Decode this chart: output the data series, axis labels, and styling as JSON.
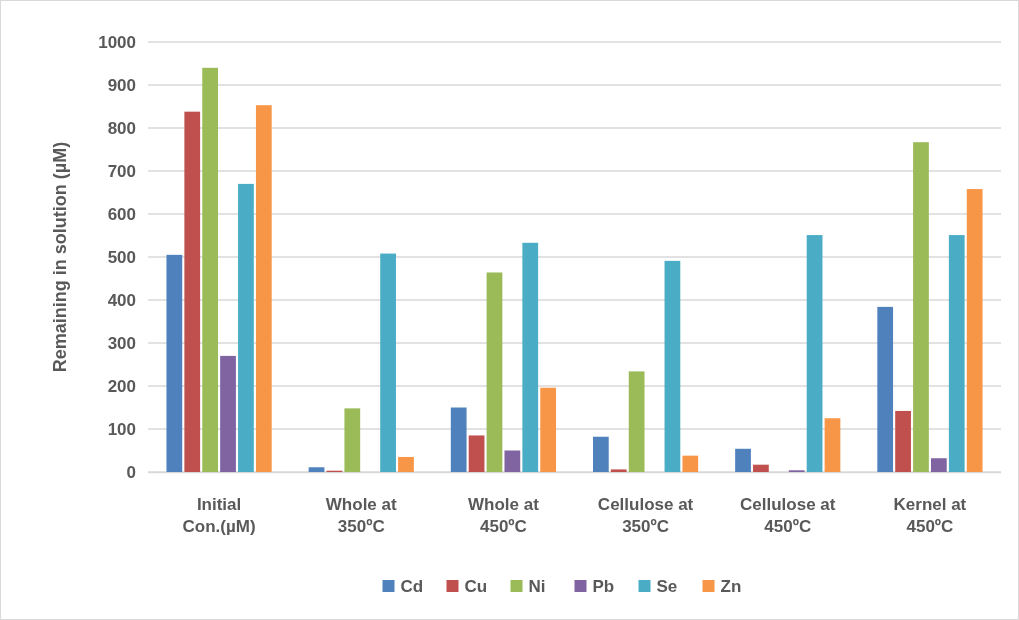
{
  "chart_data": {
    "type": "bar",
    "ylabel": "Remaining in solution (µM)",
    "categories": [
      "Initial Con.(µM)",
      "Whole at 350ºC",
      "Whole at 450ºC",
      "Cellulose at 350ºC",
      "Cellulose at 450ºC",
      "Kernel at 450ºC"
    ],
    "series": [
      {
        "name": "Cd",
        "color": "#4f81bd",
        "values": [
          505,
          11,
          150,
          82,
          54,
          384
        ]
      },
      {
        "name": "Cu",
        "color": "#c0504d",
        "values": [
          838,
          3,
          85,
          6,
          17,
          142
        ]
      },
      {
        "name": "Ni",
        "color": "#9bbb59",
        "values": [
          940,
          148,
          464,
          234,
          0,
          767
        ]
      },
      {
        "name": "Pb",
        "color": "#8064a2",
        "values": [
          270,
          null,
          50,
          0,
          4,
          32
        ]
      },
      {
        "name": "Se",
        "color": "#4bacc6",
        "values": [
          670,
          508,
          533,
          491,
          551,
          551
        ]
      },
      {
        "name": "Zn",
        "color": "#f79646",
        "values": [
          853,
          35,
          196,
          38,
          125,
          658
        ]
      }
    ],
    "ylim": [
      0,
      1000
    ],
    "yticks": [
      0,
      100,
      200,
      300,
      400,
      500,
      600,
      700,
      800,
      900,
      1000
    ],
    "grid": "y",
    "legend": "bottom"
  }
}
